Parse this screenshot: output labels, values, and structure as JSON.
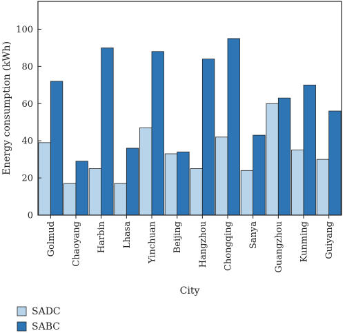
{
  "chart_data": {
    "type": "bar",
    "title": "",
    "xlabel": "City",
    "ylabel": "Energy consumption (kWh)",
    "ylim": [
      0,
      115
    ],
    "yticks": [
      0,
      20,
      40,
      60,
      80,
      100
    ],
    "categories": [
      "Golmud",
      "Chaoyang",
      "Harbin",
      "Lhasa",
      "Yinchuan",
      "Beijing",
      "Hangzhou",
      "Chongqing",
      "Sanya",
      "Guangzhou",
      "Kunming",
      "Guiyang"
    ],
    "series": [
      {
        "name": "SADC",
        "color": "#b8d4ea",
        "values": [
          39,
          17,
          25,
          17,
          47,
          33,
          25,
          42,
          24,
          60,
          35,
          30
        ]
      },
      {
        "name": "SABC",
        "color": "#2e75b6",
        "values": [
          72,
          29,
          90,
          36,
          88,
          34,
          84,
          95,
          43,
          63,
          70,
          56
        ]
      }
    ],
    "grid": false,
    "legend_position": "bottom-left"
  }
}
